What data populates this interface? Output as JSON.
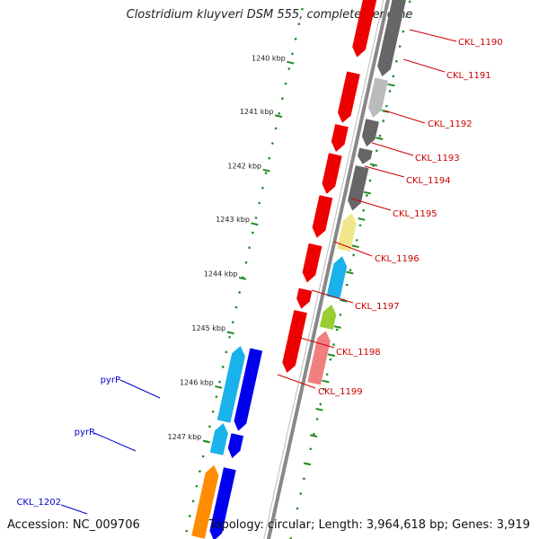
{
  "title": "Clostridium kluyveri DSM 555, complete genome",
  "accession": "Accession: NC_009706",
  "stats": "Topology: circular; Length: 3,964,618 bp; Genes: 3,919",
  "colors": {
    "red": "#ee0000",
    "dark_gray": "#666666",
    "light_gray": "#bbbbbb",
    "pink": "#f08080",
    "yellow": "#f0e68c",
    "cyan": "#1ab2ea",
    "blue": "#0000ee",
    "green": "#9acd32",
    "orange": "#ff8c00",
    "backbone": "#888888",
    "tick": "#228b22",
    "label_red": "#cc0000",
    "label_blue": "#0000cc"
  },
  "kbp_ticks": [
    {
      "label": "1240 kbp"
    },
    {
      "label": "1241 kbp"
    },
    {
      "label": "1242 kbp"
    },
    {
      "label": "1243 kbp"
    },
    {
      "label": "1244 kbp"
    },
    {
      "label": "1245 kbp"
    },
    {
      "label": "1246 kbp"
    },
    {
      "label": "1247 kbp"
    }
  ],
  "gene_labels": [
    {
      "name": "CKL_1190",
      "color": "label_red"
    },
    {
      "name": "CKL_1191",
      "color": "label_red"
    },
    {
      "name": "CKL_1192",
      "color": "label_red"
    },
    {
      "name": "CKL_1193",
      "color": "label_red"
    },
    {
      "name": "CKL_1194",
      "color": "label_red"
    },
    {
      "name": "CKL_1195",
      "color": "label_red"
    },
    {
      "name": "CKL_1196",
      "color": "label_red"
    },
    {
      "name": "CKL_1197",
      "color": "label_red"
    },
    {
      "name": "CKL_1198",
      "color": "label_red"
    },
    {
      "name": "CKL_1199",
      "color": "label_red"
    },
    {
      "name": "pyrP",
      "color": "label_blue"
    },
    {
      "name": "pyrR",
      "color": "label_blue"
    },
    {
      "name": "CKL_1202",
      "color": "label_blue"
    }
  ]
}
